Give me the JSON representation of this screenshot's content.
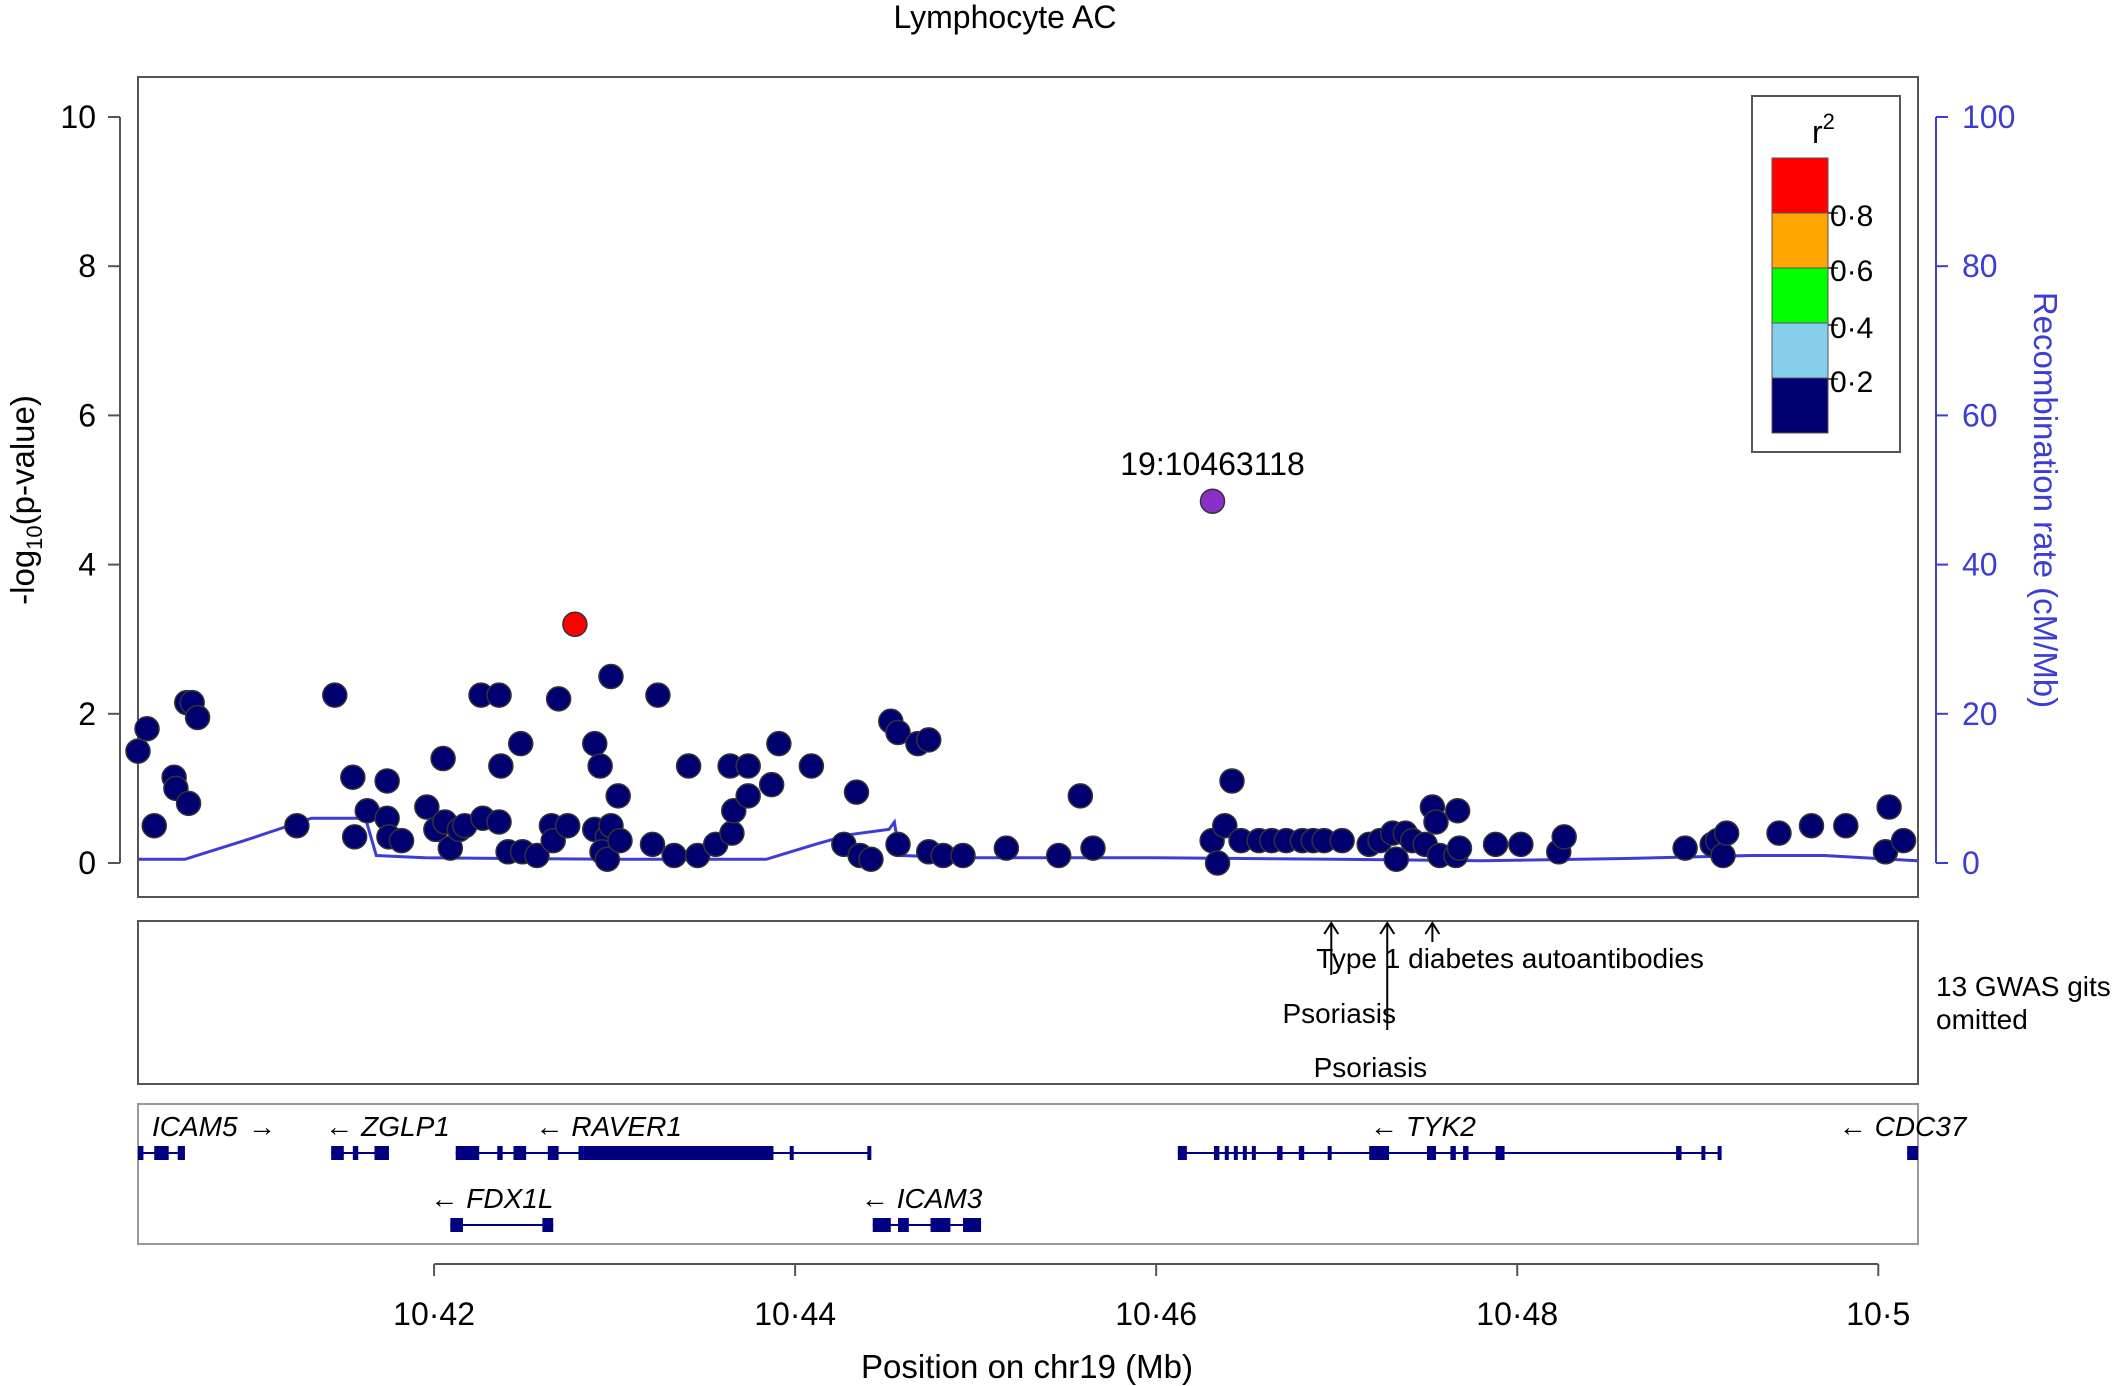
{
  "chart_data": {
    "type": "scatter",
    "title": "Lymphocyte AC",
    "xlabel": "Position on chr19 (Mb)",
    "ylabel": "-log10(p-value)",
    "ylabel_main": "-log",
    "ylabel_sub": "10",
    "ylabel_tail": "(p-value)",
    "y2label": "Recombination rate (cM/Mb)",
    "xlim": [
      10.4036,
      10.5022
    ],
    "ylim": [
      -0.45,
      10.5
    ],
    "y2lim": [
      0,
      100
    ],
    "x_ticks": [
      10.42,
      10.44,
      10.46,
      10.48,
      10.5
    ],
    "x_tick_labels": [
      "10·42",
      "10·44",
      "10·46",
      "10·48",
      "10·5"
    ],
    "y_ticks": [
      0,
      2,
      4,
      6,
      8,
      10
    ],
    "y_tick_labels": [
      "0",
      "2",
      "4",
      "6",
      "8",
      "10"
    ],
    "y2_ticks": [
      0,
      20,
      40,
      60,
      80,
      100
    ],
    "y2_tick_labels": [
      "0",
      "20",
      "40",
      "60",
      "80",
      "100"
    ],
    "grid": false,
    "colors": {
      "r2_0_2": "#000070",
      "r2_0_4": "#87ceeb",
      "r2_0_6": "#00ff00",
      "r2_0_8": "#ffa500",
      "r2_1_0": "#ff0000",
      "index": "#8b2fc9",
      "recomb": "#3d3dd6",
      "gene": "#000080"
    },
    "legend": {
      "title": "r",
      "title_sup": "2",
      "position": "top-right",
      "labels": [
        "0·8",
        "0·6",
        "0·4",
        "0·2"
      ],
      "colors": [
        "#ff0000",
        "#ffa500",
        "#00ff00",
        "#87ceeb",
        "#000070"
      ]
    },
    "index_snp": {
      "label": "19:10463118",
      "x": 10.46312,
      "y": 4.85
    },
    "highlight_snp": {
      "x": 10.4278,
      "y": 3.2,
      "r2_color": "#ff0000"
    },
    "series": [
      {
        "points": [
          [
            10.4036,
            1.5
          ],
          [
            10.4041,
            1.8
          ],
          [
            10.4045,
            0.5
          ],
          [
            10.4056,
            1.15
          ],
          [
            10.4057,
            1.0
          ],
          [
            10.4064,
            0.8
          ],
          [
            10.4063,
            2.15
          ],
          [
            10.4066,
            2.15
          ],
          [
            10.4069,
            1.95
          ],
          [
            10.4124,
            0.5
          ],
          [
            10.4145,
            2.25
          ],
          [
            10.4155,
            1.15
          ],
          [
            10.4156,
            0.35
          ],
          [
            10.4163,
            0.7
          ],
          [
            10.4174,
            1.1
          ],
          [
            10.4174,
            0.6
          ],
          [
            10.4175,
            0.35
          ],
          [
            10.4182,
            0.3
          ],
          [
            10.4196,
            0.75
          ],
          [
            10.4201,
            0.45
          ],
          [
            10.4205,
            1.4
          ],
          [
            10.4206,
            0.55
          ],
          [
            10.4209,
            0.2
          ],
          [
            10.4214,
            0.45
          ],
          [
            10.4217,
            0.5
          ],
          [
            10.4226,
            2.25
          ],
          [
            10.4227,
            0.6
          ],
          [
            10.4236,
            2.25
          ],
          [
            10.4236,
            0.55
          ],
          [
            10.4237,
            1.3
          ],
          [
            10.4241,
            0.15
          ],
          [
            10.4248,
            1.6
          ],
          [
            10.4249,
            0.15
          ],
          [
            10.4257,
            0.1
          ],
          [
            10.4265,
            0.5
          ],
          [
            10.4266,
            0.3
          ],
          [
            10.4269,
            2.2
          ],
          [
            10.4274,
            0.5
          ],
          [
            10.4289,
            1.6
          ],
          [
            10.4292,
            1.3
          ],
          [
            10.4289,
            0.45
          ],
          [
            10.4296,
            0.35
          ],
          [
            10.4293,
            0.15
          ],
          [
            10.4298,
            0.5
          ],
          [
            10.4298,
            2.5
          ],
          [
            10.4296,
            0.05
          ],
          [
            10.4302,
            0.9
          ],
          [
            10.4303,
            0.3
          ],
          [
            10.4321,
            0.25
          ],
          [
            10.4324,
            2.25
          ],
          [
            10.4333,
            0.1
          ],
          [
            10.4341,
            1.3
          ],
          [
            10.4346,
            0.1
          ],
          [
            10.4356,
            0.25
          ],
          [
            10.4365,
            0.4
          ],
          [
            10.4364,
            1.3
          ],
          [
            10.4374,
            1.3
          ],
          [
            10.4366,
            0.7
          ],
          [
            10.4374,
            0.9
          ],
          [
            10.4387,
            1.05
          ],
          [
            10.4391,
            1.6
          ],
          [
            10.4409,
            1.3
          ],
          [
            10.4427,
            0.25
          ],
          [
            10.4434,
            0.95
          ],
          [
            10.4436,
            0.1
          ],
          [
            10.4442,
            0.05
          ],
          [
            10.4453,
            1.9
          ],
          [
            10.4457,
            1.75
          ],
          [
            10.4457,
            0.25
          ],
          [
            10.4468,
            1.6
          ],
          [
            10.4474,
            1.65
          ],
          [
            10.4474,
            0.15
          ],
          [
            10.4482,
            0.1
          ],
          [
            10.4493,
            0.1
          ],
          [
            10.4517,
            0.2
          ],
          [
            10.4546,
            0.1
          ],
          [
            10.4558,
            0.9
          ],
          [
            10.4565,
            0.2
          ],
          [
            10.4631,
            0.3
          ],
          [
            10.4634,
            0.0
          ],
          [
            10.4638,
            0.5
          ],
          [
            10.4642,
            1.1
          ],
          [
            10.4647,
            0.3
          ],
          [
            10.4657,
            0.3
          ],
          [
            10.4664,
            0.3
          ],
          [
            10.4672,
            0.3
          ],
          [
            10.4681,
            0.3
          ],
          [
            10.4687,
            0.3
          ],
          [
            10.4693,
            0.3
          ],
          [
            10.4703,
            0.3
          ],
          [
            10.4718,
            0.25
          ],
          [
            10.4724,
            0.3
          ],
          [
            10.4731,
            0.4
          ],
          [
            10.4733,
            0.05
          ],
          [
            10.4738,
            0.4
          ],
          [
            10.4742,
            0.3
          ],
          [
            10.4749,
            0.25
          ],
          [
            10.4753,
            0.75
          ],
          [
            10.4755,
            0.55
          ],
          [
            10.4757,
            0.1
          ],
          [
            10.4766,
            0.1
          ],
          [
            10.4767,
            0.7
          ],
          [
            10.4768,
            0.2
          ],
          [
            10.4788,
            0.25
          ],
          [
            10.4802,
            0.25
          ],
          [
            10.4823,
            0.15
          ],
          [
            10.4826,
            0.35
          ],
          [
            10.4893,
            0.2
          ],
          [
            10.4908,
            0.25
          ],
          [
            10.4911,
            0.3
          ],
          [
            10.4914,
            0.1
          ],
          [
            10.4916,
            0.4
          ],
          [
            10.4945,
            0.4
          ],
          [
            10.4963,
            0.5
          ],
          [
            10.4982,
            0.5
          ],
          [
            10.5004,
            0.15
          ],
          [
            10.5006,
            0.75
          ],
          [
            10.5014,
            0.3
          ]
        ]
      },
      {
        "name": "Recombination rate",
        "x": [
          10.4036,
          10.4062,
          10.4095,
          10.4132,
          10.4162,
          10.4168,
          10.4195,
          10.43,
          10.435,
          10.4384,
          10.4411,
          10.443,
          10.4452,
          10.4455,
          10.4458,
          10.45,
          10.46,
          10.47,
          10.478,
          10.486,
          10.493,
          10.497,
          10.5022
        ],
        "y": [
          0.5,
          0.5,
          3.0,
          6.0,
          6.0,
          1.0,
          0.7,
          0.5,
          0.5,
          0.5,
          2.5,
          3.8,
          4.5,
          5.5,
          1.0,
          0.7,
          0.7,
          0.5,
          0.3,
          0.6,
          1.0,
          1.0,
          0.3
        ]
      }
    ],
    "gwas": {
      "omitted_note": [
        "13 GWAS gits",
        "omitted"
      ],
      "hits": [
        {
          "x": 10.4697,
          "label": "Type 1 diabetes autoantibodies"
        },
        {
          "x": 10.4728,
          "label": "Psoriasis"
        },
        {
          "x": 10.4753,
          "label": "Psoriasis"
        }
      ]
    },
    "genes": [
      {
        "name": "ICAM5",
        "strand": "+",
        "start": 10.4036,
        "end": 10.4062,
        "row": 0,
        "exons": [
          [
            10.4036,
            10.4039
          ],
          [
            10.4045,
            10.4053
          ],
          [
            10.4058,
            10.4062
          ]
        ]
      },
      {
        "name": "ZGLP1",
        "strand": "-",
        "start": 10.4143,
        "end": 10.4175,
        "row": 0,
        "exons": [
          [
            10.4143,
            10.415
          ],
          [
            10.4155,
            10.4158
          ],
          [
            10.4167,
            10.4175
          ]
        ]
      },
      {
        "name": "RAVER1",
        "strand": "-",
        "start": 10.4212,
        "end": 10.4442,
        "row": 0,
        "exons": [
          [
            10.4212,
            10.4225
          ],
          [
            10.4235,
            10.4238
          ],
          [
            10.4244,
            10.4251
          ],
          [
            10.4263,
            10.4269
          ],
          [
            10.428,
            10.4283
          ],
          [
            10.4283,
            10.4388
          ],
          [
            10.4397,
            10.4399
          ],
          [
            10.444,
            10.4442
          ]
        ]
      },
      {
        "name": "TYK2",
        "strand": "-",
        "start": 10.4612,
        "end": 10.4913,
        "row": 0,
        "exons": [
          [
            10.4612,
            10.4617
          ],
          [
            10.4632,
            10.4635
          ],
          [
            10.4638,
            10.464
          ],
          [
            10.4643,
            10.4645
          ],
          [
            10.4648,
            10.465
          ],
          [
            10.4653,
            10.4655
          ],
          [
            10.4667,
            10.467
          ],
          [
            10.4679,
            10.4682
          ],
          [
            10.4695,
            10.4697
          ],
          [
            10.4718,
            10.4729
          ],
          [
            10.475,
            10.4755
          ],
          [
            10.4763,
            10.4766
          ],
          [
            10.477,
            10.4773
          ],
          [
            10.4788,
            10.4793
          ],
          [
            10.4888,
            10.4891
          ],
          [
            10.4902,
            10.4904
          ],
          [
            10.4911,
            10.4913
          ]
        ]
      },
      {
        "name": "CDC37",
        "strand": "-",
        "start": 10.5016,
        "end": 10.5022,
        "row": 0,
        "exons": [
          [
            10.5016,
            10.5022
          ]
        ]
      },
      {
        "name": "FDX1L",
        "strand": "-",
        "start": 10.4209,
        "end": 10.4266,
        "row": 1,
        "exons": [
          [
            10.4209,
            10.4216
          ],
          [
            10.426,
            10.4266
          ]
        ]
      },
      {
        "name": "ICAM3",
        "strand": "-",
        "start": 10.4443,
        "end": 10.4503,
        "row": 1,
        "exons": [
          [
            10.4443,
            10.4453
          ],
          [
            10.4457,
            10.4463
          ],
          [
            10.4475,
            10.4486
          ],
          [
            10.4493,
            10.4503
          ]
        ]
      }
    ]
  }
}
